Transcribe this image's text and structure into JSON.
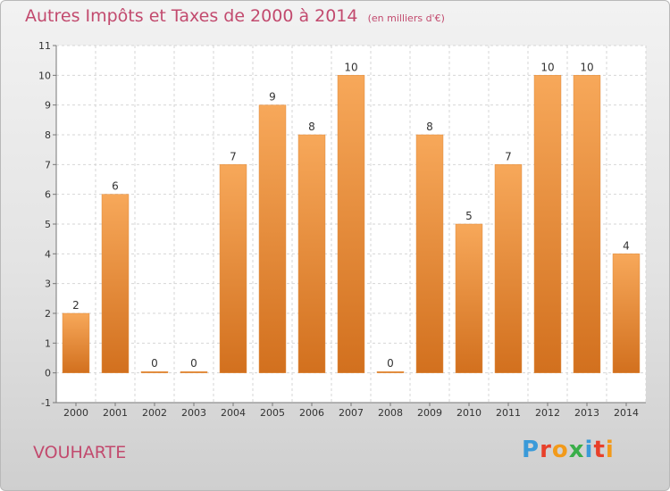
{
  "header": {
    "title": "Autres Impôts et Taxes de 2000 à 2014",
    "unit": "(en milliers d'€)"
  },
  "footer": {
    "city": "VOUHARTE",
    "logo_letters": [
      "P",
      "r",
      "o",
      "x",
      "i",
      "t",
      "i"
    ],
    "logo_colors": [
      "#3a9ad9",
      "#e8402a",
      "#f29a1a",
      "#3aae4a",
      "#3a9ad9",
      "#e8402a",
      "#f29a1a"
    ]
  },
  "colors": {
    "title": "#c24a6e",
    "bar_light": "#f7a85a",
    "bar_dark": "#d2701e"
  },
  "chart_data": {
    "type": "bar",
    "title": "Autres Impôts et Taxes de 2000 à 2014",
    "subtitle": "(en milliers d'€)",
    "categories": [
      "2000",
      "2001",
      "2002",
      "2003",
      "2004",
      "2005",
      "2006",
      "2007",
      "2008",
      "2009",
      "2010",
      "2011",
      "2012",
      "2013",
      "2014"
    ],
    "values": [
      2,
      6,
      0,
      0,
      7,
      9,
      8,
      10,
      0,
      8,
      5,
      7,
      10,
      10,
      4
    ],
    "ylim": [
      -1,
      11
    ],
    "yticks": [
      "-1",
      "0",
      "1",
      "2",
      "3",
      "4",
      "5",
      "6",
      "7",
      "8",
      "9",
      "10",
      "11"
    ],
    "grid": true
  }
}
